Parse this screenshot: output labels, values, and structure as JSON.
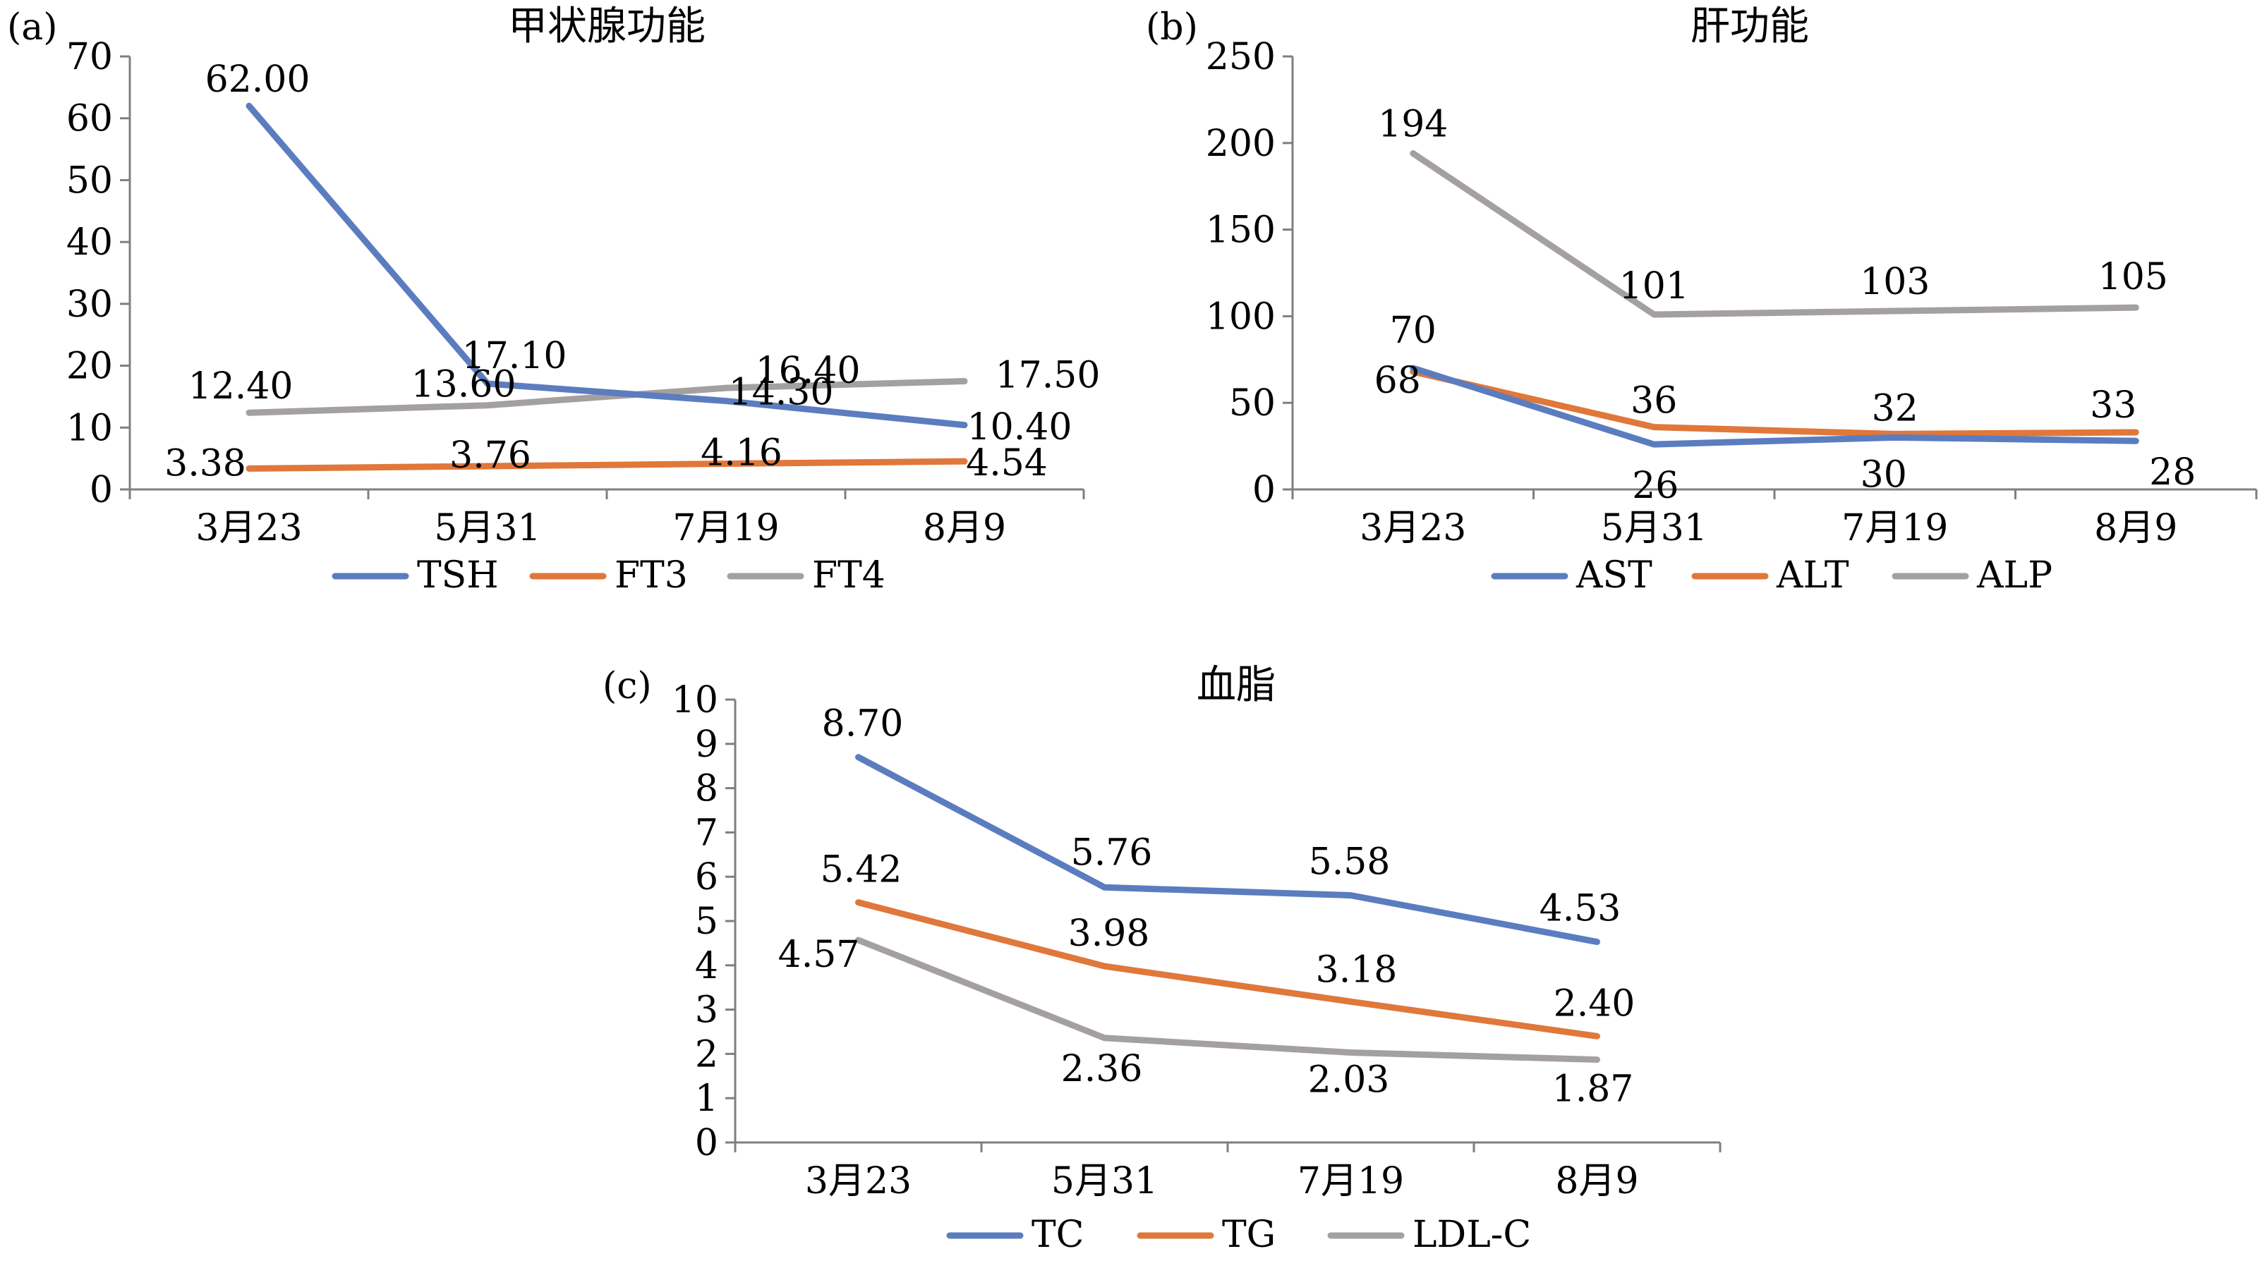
{
  "figure": {
    "language": "zh"
  },
  "colors": {
    "blue": "#5B7DBF",
    "orange": "#E0773B",
    "gray": "#A5A0A0"
  },
  "chart_data": [
    {
      "panel": "(a)",
      "type": "line",
      "title": "甲状腺功能",
      "xlabel": "",
      "ylabel": "",
      "categories": [
        "3月23",
        "5月31",
        "7月19",
        "8月9"
      ],
      "ylim": [
        0,
        70
      ],
      "yticks": [
        "0",
        "10",
        "20",
        "30",
        "40",
        "50",
        "60",
        "70"
      ],
      "grid": false,
      "legend": "bottom",
      "series": [
        {
          "name": "TSH",
          "color": "#5B7DBF",
          "values": [
            62.0,
            17.1,
            14.3,
            10.4
          ],
          "labels": [
            "62.00",
            "17.10",
            "14.30",
            "10.40"
          ]
        },
        {
          "name": "FT3",
          "color": "#E0773B",
          "values": [
            3.38,
            3.76,
            4.16,
            4.54
          ],
          "labels": [
            "3.38",
            "3.76",
            "4.16",
            "4.54"
          ]
        },
        {
          "name": "FT4",
          "color": "#A5A0A0",
          "values": [
            12.4,
            13.6,
            16.4,
            17.5
          ],
          "labels": [
            "12.40",
            "13.60",
            "16.40",
            "17.50"
          ]
        }
      ]
    },
    {
      "panel": "(b)",
      "type": "line",
      "title": "肝功能",
      "xlabel": "",
      "ylabel": "",
      "categories": [
        "3月23",
        "5月31",
        "7月19",
        "8月9"
      ],
      "ylim": [
        0,
        250
      ],
      "yticks": [
        "0",
        "50",
        "100",
        "150",
        "200",
        "250"
      ],
      "grid": false,
      "legend": "bottom",
      "series": [
        {
          "name": "AST",
          "color": "#5B7DBF",
          "values": [
            70,
            26,
            30,
            28
          ],
          "labels": [
            "70",
            "26",
            "30",
            "28"
          ]
        },
        {
          "name": "ALT",
          "color": "#E0773B",
          "values": [
            68,
            36,
            32,
            33
          ],
          "labels": [
            "68",
            "36",
            "32",
            "33"
          ]
        },
        {
          "name": "ALP",
          "color": "#A5A0A0",
          "values": [
            194,
            101,
            103,
            105
          ],
          "labels": [
            "194",
            "101",
            "103",
            "105"
          ]
        }
      ]
    },
    {
      "panel": "(c)",
      "type": "line",
      "title": "血脂",
      "xlabel": "",
      "ylabel": "",
      "categories": [
        "3月23",
        "5月31",
        "7月19",
        "8月9"
      ],
      "ylim": [
        0,
        10
      ],
      "yticks": [
        "0",
        "1",
        "2",
        "3",
        "4",
        "5",
        "6",
        "7",
        "8",
        "9",
        "10"
      ],
      "grid": false,
      "legend": "bottom",
      "series": [
        {
          "name": "TC",
          "color": "#5B7DBF",
          "values": [
            8.7,
            5.76,
            5.58,
            4.53
          ],
          "labels": [
            "8.70",
            "5.76",
            "5.58",
            "4.53"
          ]
        },
        {
          "name": "TG",
          "color": "#E0773B",
          "values": [
            5.42,
            3.98,
            3.18,
            2.4
          ],
          "labels": [
            "5.42",
            "3.98",
            "3.18",
            "2.40"
          ]
        },
        {
          "name": "LDL-C",
          "color": "#A5A0A0",
          "values": [
            4.57,
            2.36,
            2.03,
            1.87
          ],
          "labels": [
            "4.57",
            "2.36",
            "2.03",
            "1.87"
          ]
        }
      ]
    }
  ]
}
